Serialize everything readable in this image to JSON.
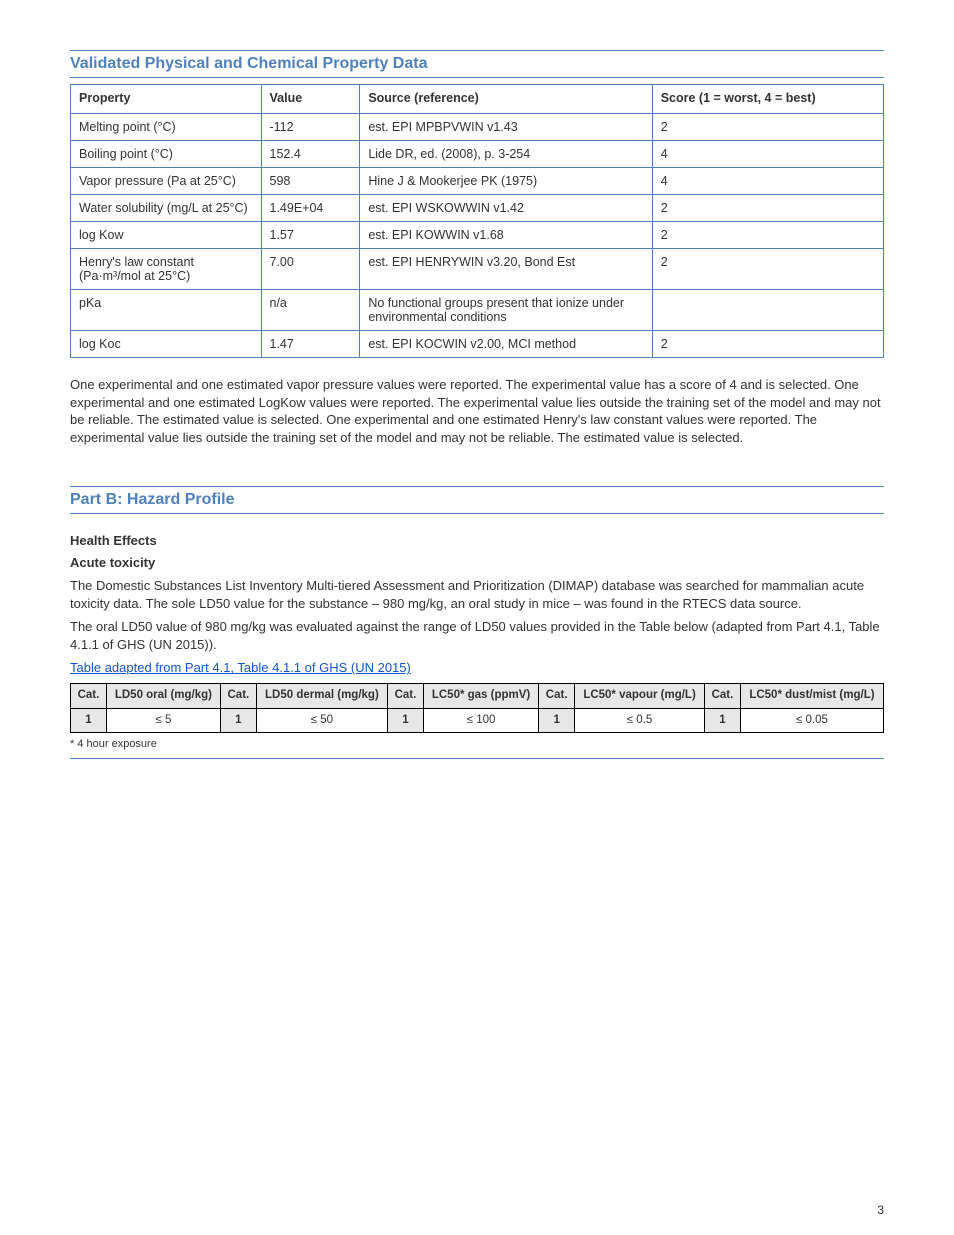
{
  "section_title_props": "Validated Physical and Chemical Property Data",
  "props_table": {
    "columns": [
      "Property",
      "Value",
      "Source (reference)",
      "Score (1 = worst, 4 = best)"
    ],
    "rows": [
      [
        "Melting point (°C)",
        "-112",
        "est. EPI MPBPVWIN v1.43",
        "2"
      ],
      [
        "Boiling point (°C)",
        "152.4",
        "Lide DR, ed. (2008), p. 3-254",
        "4"
      ],
      [
        "Vapor pressure (Pa at 25°C)",
        "598",
        "Hine J & Mookerjee PK (1975)",
        "4"
      ],
      [
        "Water solubility (mg/L at 25°C)",
        "1.49E+04",
        "est. EPI WSKOWWIN v1.42",
        "2"
      ],
      [
        "log Kow",
        "1.57",
        "est. EPI KOWWIN v1.68",
        "2"
      ],
      [
        "Henry's law constant (Pa·m³/mol at 25°C)",
        "7.00",
        "est. EPI HENRYWIN v3.20, Bond Est",
        "2"
      ],
      [
        "pKa",
        "n/a",
        "No functional groups present that ionize under environmental conditions",
        ""
      ],
      [
        "log Koc",
        "1.47",
        "est. EPI KOCWIN v2.00, MCI method",
        "2"
      ]
    ]
  },
  "commentary": "One experimental and one estimated vapor pressure values were reported. The experimental value has a score of 4 and is selected. One experimental and one estimated LogKow values were reported. The experimental value lies outside the training set of the model and may not be reliable. The estimated value is selected. One experimental and one estimated Henry's law constant values were reported. The experimental value lies outside the training set of the model and may not be reliable. The estimated value is selected.",
  "part_B_heading": "Part B: Hazard Profile",
  "health_effects_heading": "Health Effects",
  "acute_toxicity_heading": "Acute toxicity",
  "acute_toxicity_text_1": "The Domestic Substances List Inventory Multi-tiered Assessment and Prioritization (DIMAP) database was searched for mammalian acute toxicity data. The sole LD50 value for the substance – 980 mg/kg, an oral study in mice – was found in the RTECS data source.",
  "acute_toxicity_text_2": "The oral LD50 value of 980 mg/kg was evaluated against the range of LD50 values provided in the Table below (adapted from Part 4.1, Table 4.1.1 of GHS (UN 2015)).",
  "ld50_link_text": "Table adapted from Part 4.1, Table 4.1.1 of GHS (UN 2015)",
  "ld50_link_href": "#",
  "ld50_table": {
    "columns": [
      "Cat.",
      "LD50 oral (mg/kg)",
      "Cat.",
      "LD50 dermal (mg/kg)",
      "Cat.",
      "LC50* gas (ppmV)",
      "Cat.",
      "LC50* vapour (mg/L)",
      "Cat.",
      "LC50* dust/mist (mg/L)"
    ],
    "rows": [
      [
        "1",
        "≤ 5",
        "1",
        "≤ 50",
        "1",
        "≤ 100",
        "1",
        "≤ 0.5",
        "1",
        "≤ 0.05"
      ]
    ],
    "footnote": "* 4 hour exposure"
  },
  "page_number": "3"
}
